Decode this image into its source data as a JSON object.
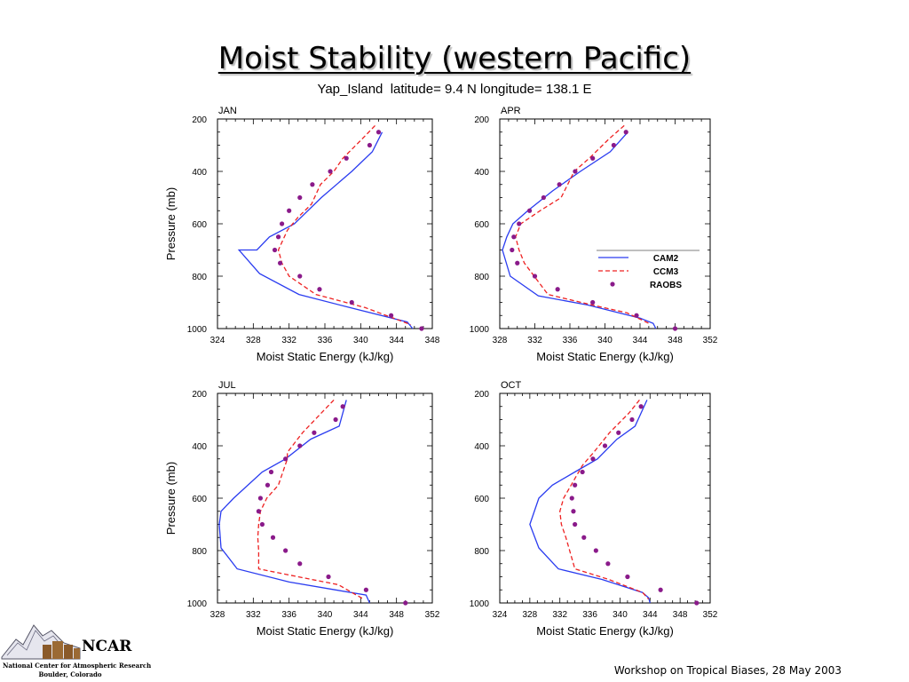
{
  "slide": {
    "title": "Moist Stability (western Pacific)",
    "footer": "Workshop on Tropical Biases, 28 May 2003"
  },
  "logo": {
    "name": "NCAR",
    "line1": "National Center for Atmospheric Research",
    "line2": "Boulder, Colorado"
  },
  "colors": {
    "CAM2": "#2a3cf0",
    "CCM3": "#ee2222",
    "RAOBS": "#8a1a8a"
  },
  "chart_data": {
    "heading": "Yap_Island  latitude= 9.4 N longitude= 138.1 E",
    "type": "line",
    "legend": {
      "placement": "right of APR panel",
      "entries": [
        "CAM2",
        "CCM3",
        "RAOBS"
      ]
    },
    "panels": [
      {
        "label": "JAN",
        "xlabel": "Moist Static Energy (kJ/kg)",
        "ylabel": "Pressure (mb)",
        "xlim": [
          324,
          348
        ],
        "ylim": [
          1000,
          200
        ],
        "xticks": [
          324,
          328,
          332,
          336,
          340,
          344,
          348
        ],
        "yticks": [
          200,
          400,
          600,
          800,
          1000
        ],
        "series": [
          {
            "name": "CAM2",
            "style": "solid",
            "x": [
              342.4,
              341.3,
              339.0,
              335.6,
              332.6,
              329.8,
              328.4,
              326.4,
              328.7,
              333.1,
              338.8,
              345.2,
              345.8
            ],
            "y": [
              250,
              325,
              400,
              500,
              600,
              650,
              700,
              700,
              790,
              870,
              920,
              975,
              1000
            ]
          },
          {
            "name": "CCM3",
            "style": "dashed",
            "x": [
              341.6,
              340.2,
              338.0,
              337.0,
              335.5,
              334.5,
              333.0,
              331.8,
              330.8,
              331.2,
              332.0,
              335.0,
              340.5,
              345.6
            ],
            "y": [
              225,
              275,
              350,
              400,
              450,
              525,
              575,
              625,
              700,
              750,
              800,
              870,
              920,
              985
            ]
          },
          {
            "name": "RAOBS",
            "style": "points",
            "x": [
              342.0,
              341.0,
              338.4,
              336.6,
              334.6,
              333.2,
              332.0,
              331.2,
              330.8,
              330.4,
              331.0,
              333.2,
              335.4,
              339.0,
              343.4,
              346.8
            ],
            "y": [
              250,
              300,
              350,
              400,
              450,
              500,
              550,
              600,
              650,
              700,
              750,
              800,
              850,
              900,
              950,
              1000
            ]
          }
        ]
      },
      {
        "label": "APR",
        "xlabel": "Moist Static Energy (kJ/kg)",
        "ylabel": "",
        "xlim": [
          328,
          352
        ],
        "ylim": [
          1000,
          200
        ],
        "xticks": [
          328,
          332,
          336,
          340,
          344,
          348,
          352
        ],
        "yticks": [
          200,
          400,
          600,
          800,
          1000
        ],
        "series": [
          {
            "name": "CAM2",
            "style": "solid",
            "x": [
              342.6,
              340.6,
              337.2,
              334.0,
              331.2,
              329.5,
              328.8,
              328.3,
              329.2,
              332.4,
              338.0,
              344.0,
              345.5,
              345.8
            ],
            "y": [
              250,
              325,
              400,
              475,
              550,
              600,
              650,
              700,
              800,
              875,
              910,
              960,
              980,
              1000
            ]
          },
          {
            "name": "CCM3",
            "style": "dashed",
            "x": [
              342.2,
              340.5,
              338.2,
              336.5,
              335.0,
              332.6,
              330.4,
              329.8,
              330.2,
              330.8,
              333.5,
              338.5,
              342.5,
              345.0
            ],
            "y": [
              225,
              275,
              350,
              400,
              500,
              550,
              600,
              650,
              700,
              750,
              870,
              910,
              940,
              980
            ]
          },
          {
            "name": "RAOBS",
            "style": "points",
            "x": [
              342.4,
              341.0,
              338.6,
              336.6,
              334.8,
              333.0,
              331.4,
              330.2,
              329.6,
              329.4,
              330.0,
              332.0,
              334.6,
              338.6,
              343.6,
              348.0
            ],
            "y": [
              250,
              300,
              350,
              400,
              450,
              500,
              550,
              600,
              650,
              700,
              750,
              800,
              850,
              900,
              950,
              1000
            ]
          }
        ]
      },
      {
        "label": "JUL",
        "xlabel": "Moist Static Energy (kJ/kg)",
        "ylabel": "Pressure (mb)",
        "xlim": [
          328,
          352
        ],
        "ylim": [
          1000,
          200
        ],
        "xticks": [
          328,
          332,
          336,
          340,
          344,
          348,
          352
        ],
        "yticks": [
          200,
          400,
          600,
          800,
          1000
        ],
        "series": [
          {
            "name": "CAM2",
            "style": "solid",
            "x": [
              342.4,
              341.6,
              338.4,
              335.6,
              333.0,
              329.8,
              328.4,
              328.2,
              328.4,
              330.2,
              336.0,
              341.2,
              344.6,
              345.0
            ],
            "y": [
              225,
              325,
              375,
              450,
              500,
              600,
              650,
              700,
              790,
              870,
              920,
              950,
              970,
              1000
            ]
          },
          {
            "name": "CCM3",
            "style": "dashed",
            "x": [
              341.0,
              339.6,
              337.5,
              335.8,
              335.8,
              334.8,
              333.5,
              332.8,
              332.6,
              332.5,
              332.6,
              332.6,
              337.0,
              341.5,
              344.3
            ],
            "y": [
              225,
              275,
              350,
              425,
              450,
              550,
              600,
              650,
              700,
              750,
              800,
              870,
              900,
              930,
              985
            ]
          },
          {
            "name": "RAOBS",
            "style": "points",
            "x": [
              342.0,
              341.2,
              338.8,
              337.2,
              335.6,
              334.0,
              333.6,
              332.8,
              332.6,
              333.0,
              334.2,
              335.6,
              337.2,
              340.4,
              344.6,
              349.0
            ],
            "y": [
              250,
              300,
              350,
              400,
              450,
              500,
              550,
              600,
              650,
              700,
              750,
              800,
              850,
              900,
              950,
              1000
            ]
          }
        ]
      },
      {
        "label": "OCT",
        "xlabel": "Moist Static Energy (kJ/kg)",
        "ylabel": "",
        "xlim": [
          324,
          352
        ],
        "ylim": [
          1000,
          200
        ],
        "xticks": [
          324,
          328,
          332,
          336,
          340,
          344,
          348,
          352
        ],
        "yticks": [
          200,
          400,
          600,
          800,
          1000
        ],
        "series": [
          {
            "name": "CAM2",
            "style": "solid",
            "x": [
              343.6,
              342.0,
              339.6,
              337.0,
              334.0,
              331.0,
              329.2,
              328.0,
              329.2,
              331.8,
              337.6,
              343.0,
              343.8,
              344.0
            ],
            "y": [
              225,
              325,
              375,
              450,
              500,
              550,
              600,
              700,
              790,
              870,
              910,
              960,
              980,
              1000
            ]
          },
          {
            "name": "CCM3",
            "style": "dashed",
            "x": [
              342.6,
              341.2,
              338.6,
              336.5,
              335.0,
              333.5,
              332.5,
              332.0,
              332.2,
              332.8,
              334.0,
              338.5,
              343.0,
              343.8
            ],
            "y": [
              225,
              275,
              350,
              425,
              475,
              550,
              600,
              650,
              700,
              750,
              870,
              910,
              960,
              985
            ]
          },
          {
            "name": "RAOBS",
            "style": "points",
            "x": [
              342.8,
              341.6,
              339.8,
              338.0,
              336.4,
              335.0,
              334.0,
              333.6,
              333.8,
              334.0,
              335.2,
              336.8,
              338.4,
              341.0,
              345.4,
              350.2
            ],
            "y": [
              250,
              300,
              350,
              400,
              450,
              500,
              550,
              600,
              650,
              700,
              750,
              800,
              850,
              900,
              950,
              1000
            ]
          }
        ]
      }
    ]
  }
}
